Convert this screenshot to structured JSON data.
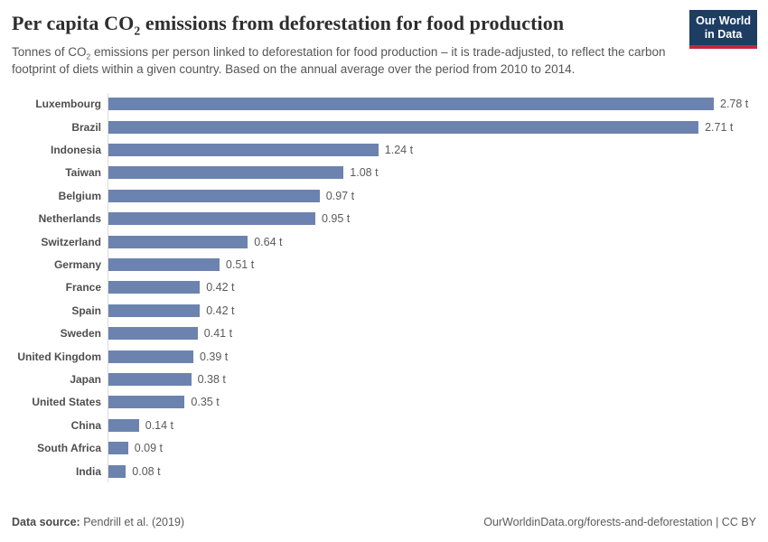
{
  "header": {
    "title_prefix": "Per capita CO",
    "title_sub": "2",
    "title_suffix": " emissions from deforestation for food production",
    "subtitle_prefix": "Tonnes of CO",
    "subtitle_sub": "2",
    "subtitle_suffix": " emissions per person linked to deforestation for food production – it is trade-adjusted, to reflect the carbon footprint of diets within a given country. Based on the annual average over the period from 2010 to 2014.",
    "logo_line1": "Our World",
    "logo_line2": "in Data"
  },
  "chart_data": {
    "type": "bar",
    "orientation": "horizontal",
    "title": "Per capita CO₂ emissions from deforestation for food production",
    "subtitle": "Tonnes of CO₂ emissions per person linked to deforestation for food production – it is trade-adjusted, to reflect the carbon footprint of diets within a given country. Based on the annual average over the period from 2010 to 2014.",
    "unit": "t",
    "xlim": [
      0,
      2.78
    ],
    "grid": false,
    "legend": "none",
    "categories": [
      "Luxembourg",
      "Brazil",
      "Indonesia",
      "Taiwan",
      "Belgium",
      "Netherlands",
      "Switzerland",
      "Germany",
      "France",
      "Spain",
      "Sweden",
      "United Kingdom",
      "Japan",
      "United States",
      "China",
      "South Africa",
      "India"
    ],
    "values": [
      2.78,
      2.71,
      1.24,
      1.08,
      0.97,
      0.95,
      0.64,
      0.51,
      0.42,
      0.42,
      0.41,
      0.39,
      0.38,
      0.35,
      0.14,
      0.09,
      0.08
    ],
    "value_labels": [
      "2.78 t",
      "2.71 t",
      "1.24 t",
      "1.08 t",
      "0.97 t",
      "0.95 t",
      "0.64 t",
      "0.51 t",
      "0.42 t",
      "0.42 t",
      "0.41 t",
      "0.39 t",
      "0.38 t",
      "0.35 t",
      "0.14 t",
      "0.09 t",
      "0.08 t"
    ],
    "bar_color": "#6c83b0"
  },
  "footer": {
    "source_label": "Data source:",
    "source_value": " Pendrill et al. (2019)",
    "link": "OurWorldinData.org/forests-and-deforestation",
    "license": " | CC BY"
  },
  "colors": {
    "bar_blue": "#6c83b0",
    "logo_navy": "#1d3d63",
    "logo_red": "#c0293b",
    "axis_line": "#dcdcdc",
    "title_text": "#2d2d2d",
    "subtitle_text": "#565656"
  }
}
